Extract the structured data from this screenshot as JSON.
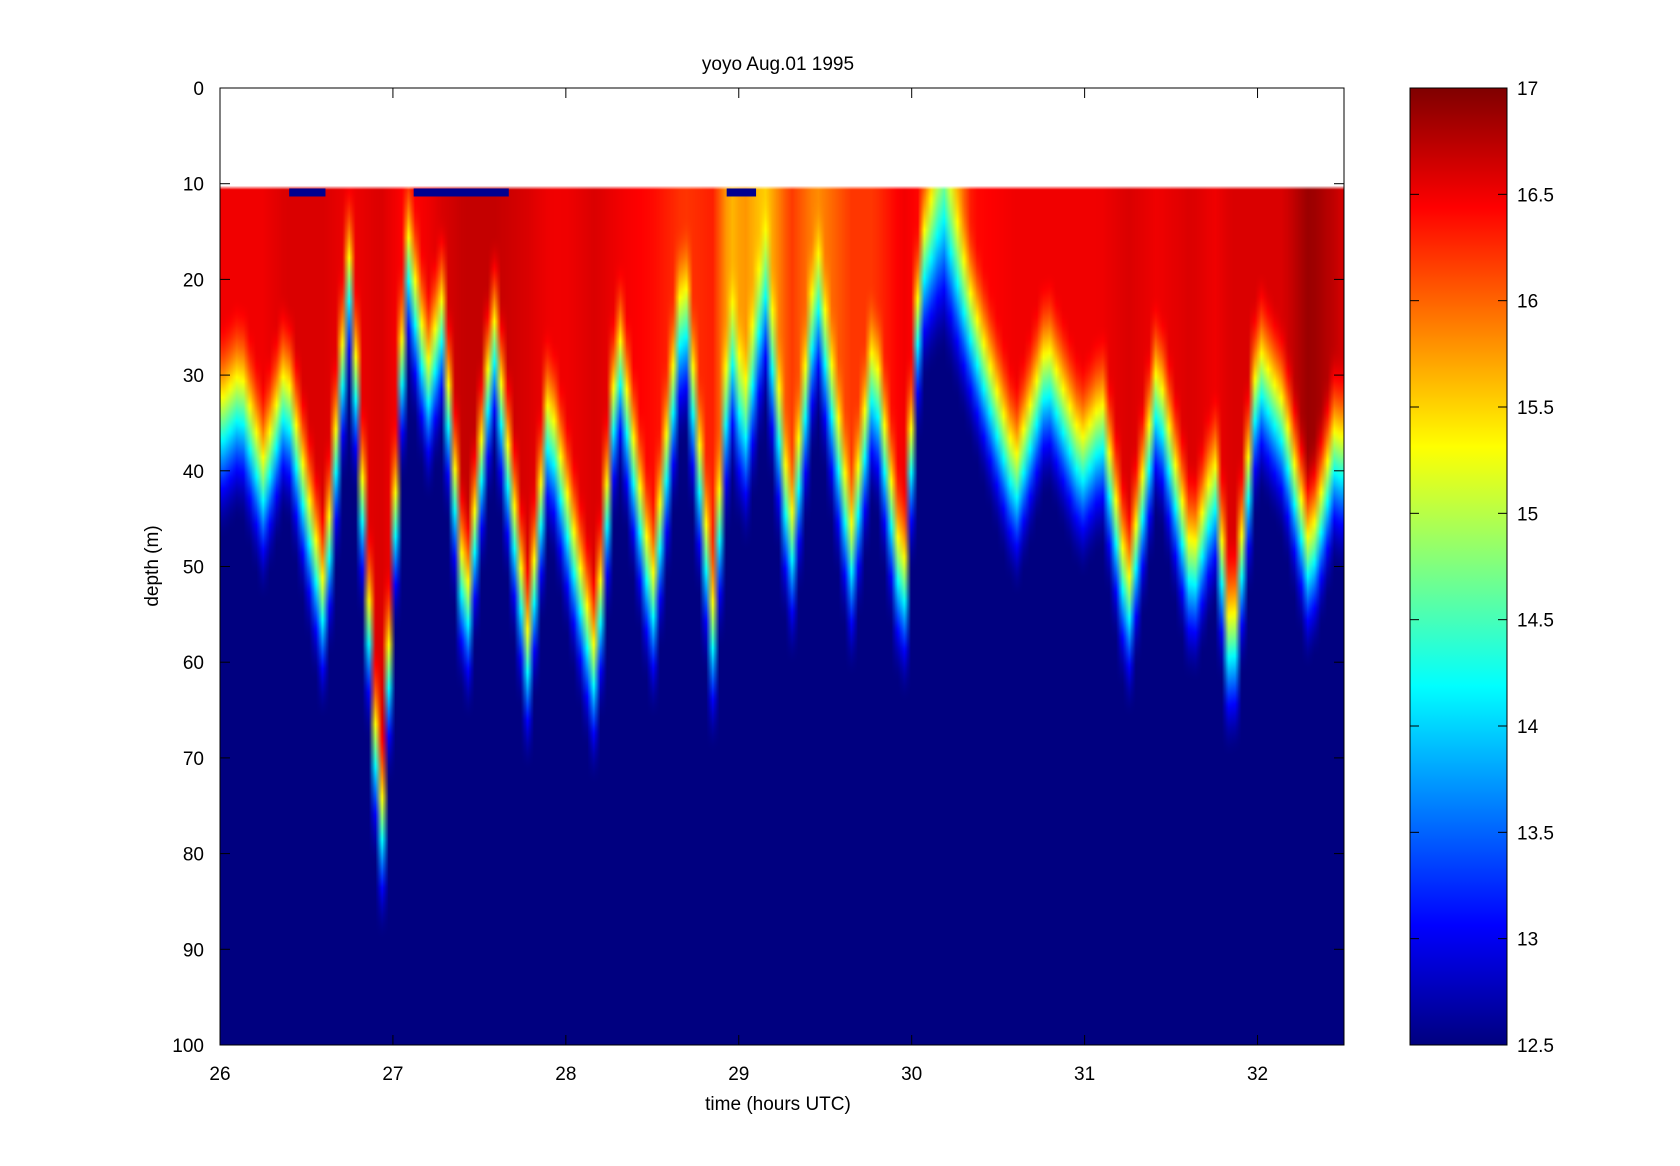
{
  "chart_data": {
    "type": "heatmap",
    "title": "yoyo Aug.01 1995",
    "xlabel": "time (hours UTC)",
    "ylabel": "depth (m)",
    "xlim": [
      26,
      32.5
    ],
    "ylim": [
      0,
      100
    ],
    "y_reversed": true,
    "colormap": "jet",
    "color_range": [
      12.5,
      17
    ],
    "x_ticks": [
      "26",
      "27",
      "28",
      "29",
      "30",
      "31",
      "32"
    ],
    "y_ticks": [
      "0",
      "10",
      "20",
      "30",
      "40",
      "50",
      "60",
      "70",
      "80",
      "90",
      "100"
    ],
    "colorbar_ticks": [
      "12.5",
      "13",
      "13.5",
      "14",
      "14.5",
      "15",
      "15.5",
      "16",
      "16.5",
      "17"
    ],
    "data_top_depth_m": 10.5,
    "profiles": [
      {
        "x": 26.0,
        "d": 36,
        "t": 16.5
      },
      {
        "x": 26.12,
        "d": 33,
        "t": 16.5
      },
      {
        "x": 26.25,
        "d": 42,
        "t": 16.5
      },
      {
        "x": 26.38,
        "d": 32,
        "t": 16.6
      },
      {
        "x": 26.6,
        "d": 55,
        "t": 16.6
      },
      {
        "x": 26.75,
        "d": 20,
        "t": 16.5
      },
      {
        "x": 26.93,
        "d": 80,
        "t": 16.6
      },
      {
        "x": 27.08,
        "d": 18,
        "t": 16.4
      },
      {
        "x": 27.2,
        "d": 32,
        "t": 16.5
      },
      {
        "x": 27.28,
        "d": 25,
        "t": 16.6
      },
      {
        "x": 27.42,
        "d": 57,
        "t": 16.7
      },
      {
        "x": 27.58,
        "d": 26,
        "t": 16.7
      },
      {
        "x": 27.78,
        "d": 60,
        "t": 16.6
      },
      {
        "x": 27.9,
        "d": 35,
        "t": 16.5
      },
      {
        "x": 28.0,
        "d": 45,
        "t": 16.5
      },
      {
        "x": 28.17,
        "d": 62,
        "t": 16.6
      },
      {
        "x": 28.3,
        "d": 28,
        "t": 16.5
      },
      {
        "x": 28.5,
        "d": 55,
        "t": 16.4
      },
      {
        "x": 28.68,
        "d": 22,
        "t": 16.2
      },
      {
        "x": 28.85,
        "d": 58,
        "t": 16.3
      },
      {
        "x": 28.95,
        "d": 28,
        "t": 15.6
      },
      {
        "x": 29.03,
        "d": 38,
        "t": 15.8
      },
      {
        "x": 29.15,
        "d": 22,
        "t": 15.5
      },
      {
        "x": 29.3,
        "d": 50,
        "t": 16.2
      },
      {
        "x": 29.45,
        "d": 22,
        "t": 15.8
      },
      {
        "x": 29.65,
        "d": 50,
        "t": 16.2
      },
      {
        "x": 29.78,
        "d": 30,
        "t": 16.2
      },
      {
        "x": 29.95,
        "d": 55,
        "t": 16.5
      },
      {
        "x": 30.05,
        "d": 20,
        "t": 16.4
      },
      {
        "x": 30.18,
        "d": 16,
        "t": 15.0
      },
      {
        "x": 30.35,
        "d": 26,
        "t": 16.4
      },
      {
        "x": 30.6,
        "d": 42,
        "t": 16.5
      },
      {
        "x": 30.78,
        "d": 30,
        "t": 16.5
      },
      {
        "x": 30.98,
        "d": 40,
        "t": 16.5
      },
      {
        "x": 31.1,
        "d": 36,
        "t": 16.5
      },
      {
        "x": 31.25,
        "d": 55,
        "t": 16.6
      },
      {
        "x": 31.42,
        "d": 32,
        "t": 16.5
      },
      {
        "x": 31.62,
        "d": 52,
        "t": 16.6
      },
      {
        "x": 31.75,
        "d": 42,
        "t": 16.5
      },
      {
        "x": 31.85,
        "d": 62,
        "t": 16.6
      },
      {
        "x": 32.0,
        "d": 30,
        "t": 16.6
      },
      {
        "x": 32.15,
        "d": 36,
        "t": 16.6
      },
      {
        "x": 32.3,
        "d": 50,
        "t": 16.9
      },
      {
        "x": 32.45,
        "d": 38,
        "t": 16.7
      },
      {
        "x": 32.5,
        "d": 40,
        "t": 16.6
      }
    ],
    "cold_blocks_at_top": [
      {
        "x0": 26.4,
        "x1": 26.61
      },
      {
        "x0": 27.12,
        "x1": 27.67
      },
      {
        "x0": 28.93,
        "x1": 29.1
      }
    ]
  }
}
